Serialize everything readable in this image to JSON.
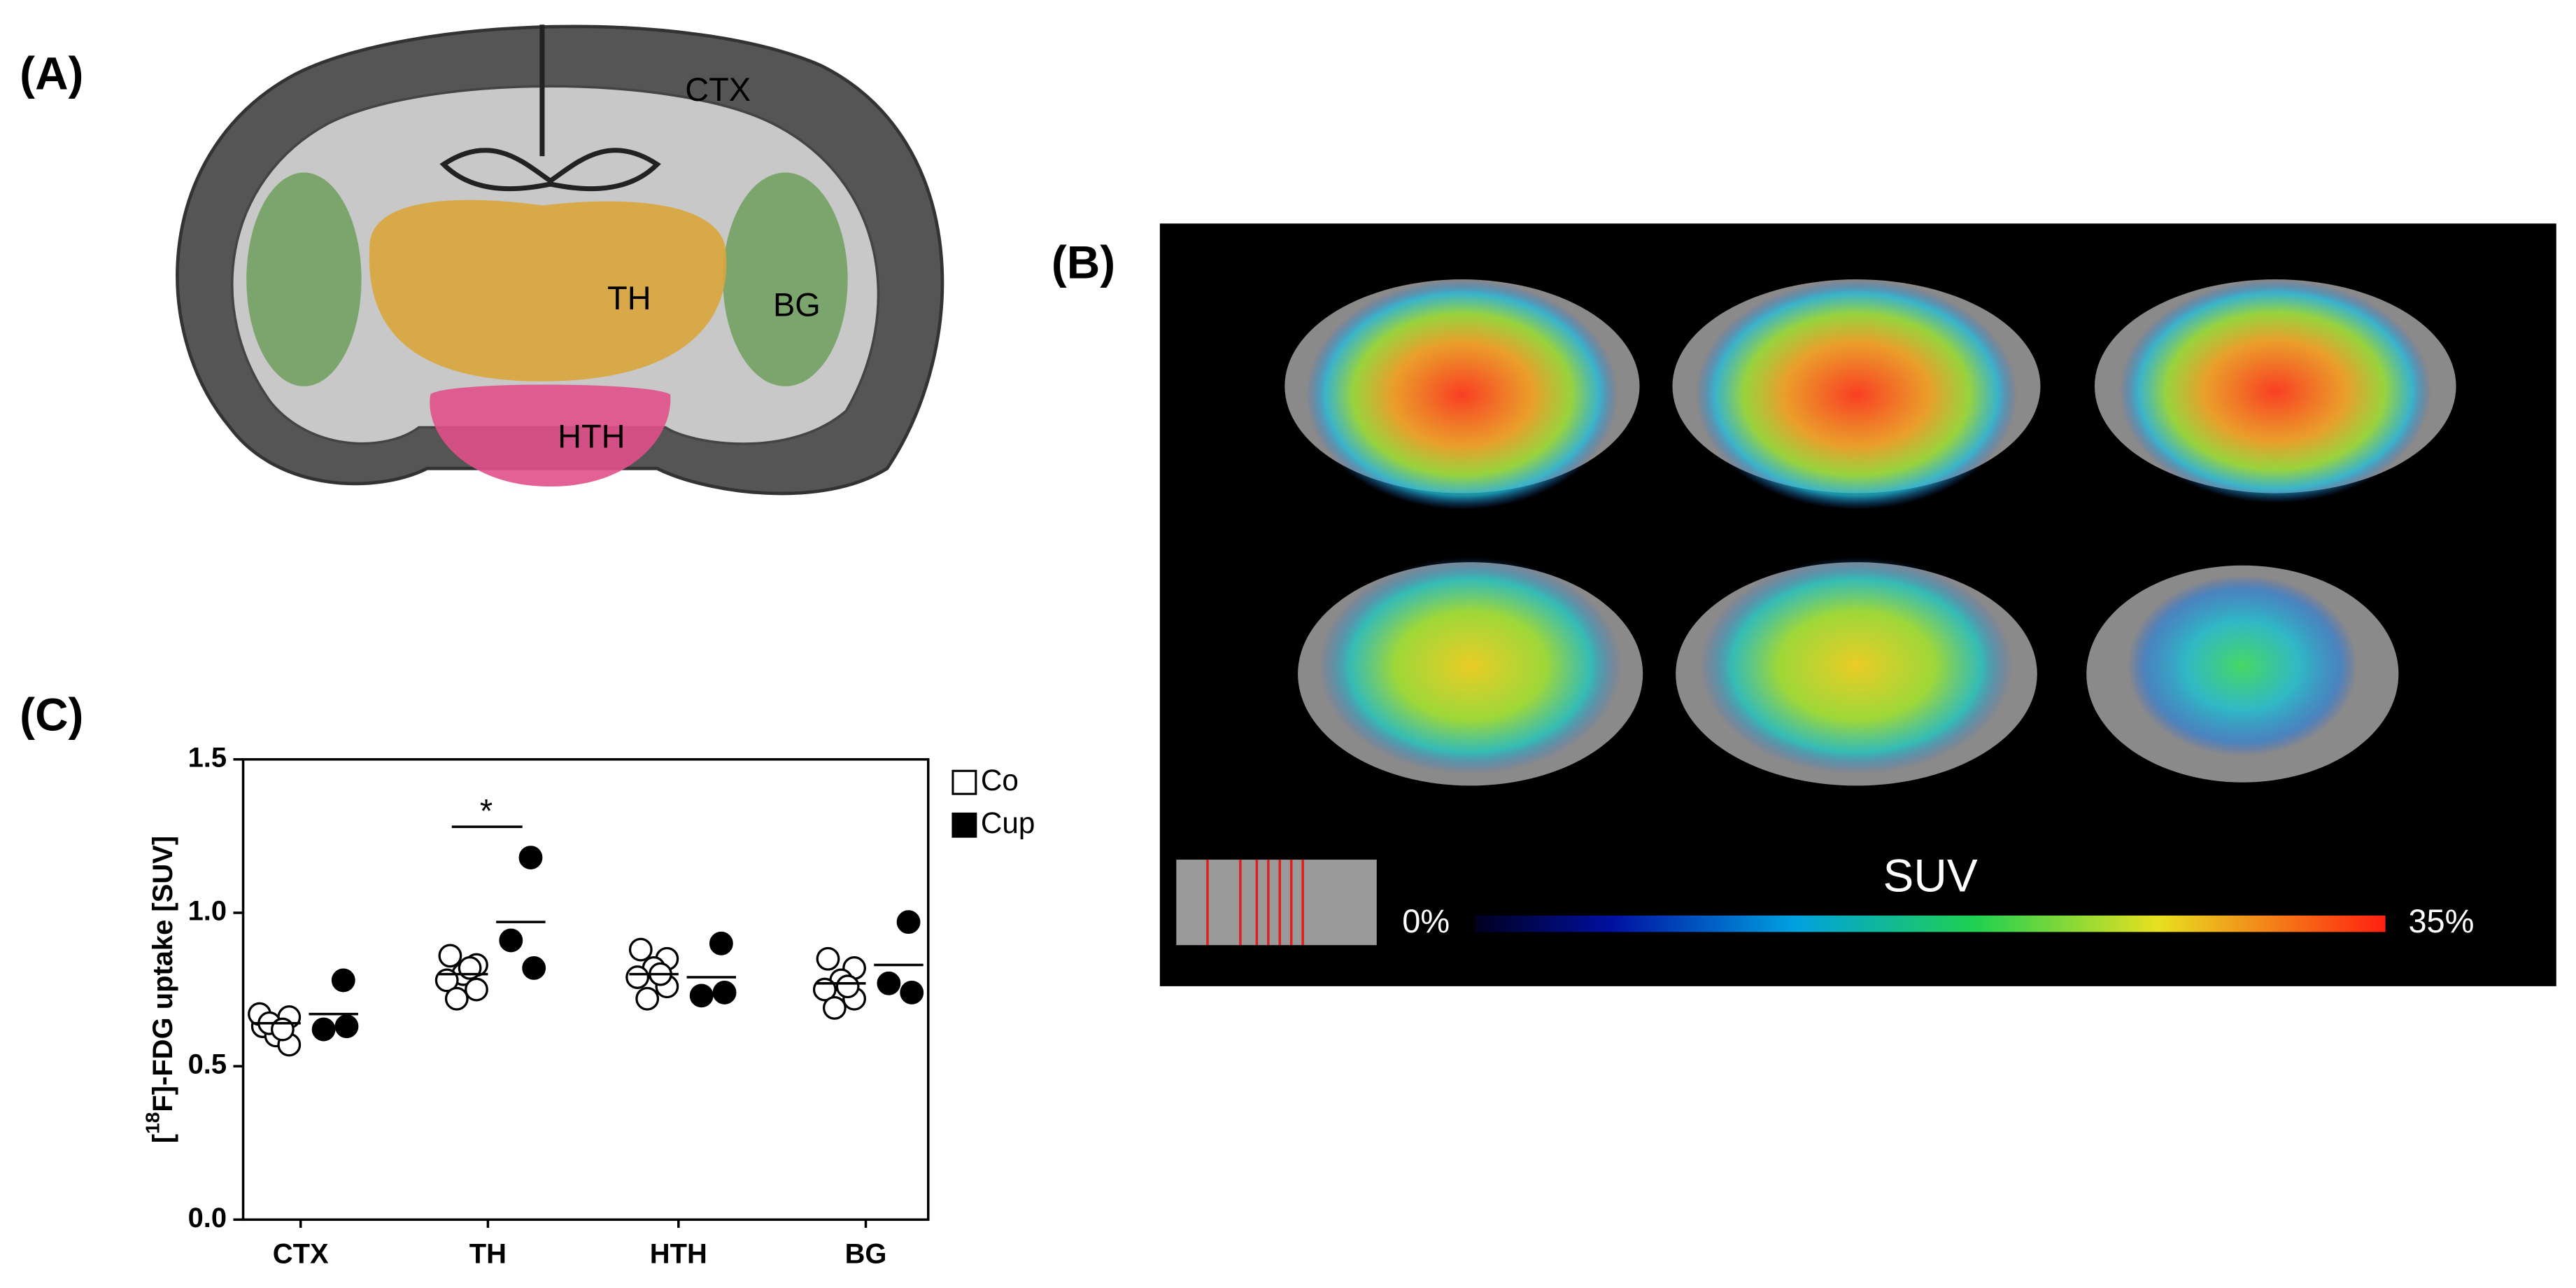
{
  "panels": {
    "A": {
      "label": "(A)",
      "regions": [
        "CTX",
        "TH",
        "BG",
        "HTH"
      ]
    },
    "B": {
      "label": "(B)",
      "colorbar": {
        "title": "SUV",
        "min_label": "0%",
        "max_label": "35%"
      }
    },
    "C": {
      "label": "(C)"
    }
  },
  "chart_data": {
    "type": "scatter",
    "y_label": {
      "prefix": "[",
      "sup": "18",
      "suffix": "F]-FDG uptake [SUV]"
    },
    "categories": [
      "CTX",
      "TH",
      "HTH",
      "BG"
    ],
    "series": [
      {
        "name": "Co",
        "color": "#000000",
        "filled": false,
        "values": [
          [
            0.63,
            0.66,
            0.6,
            0.67,
            0.57,
            0.64,
            0.62
          ],
          [
            0.86,
            0.83,
            0.8,
            0.78,
            0.75,
            0.72,
            0.82
          ],
          [
            0.88,
            0.85,
            0.82,
            0.79,
            0.76,
            0.72,
            0.8
          ],
          [
            0.85,
            0.82,
            0.78,
            0.75,
            0.72,
            0.69,
            0.76
          ]
        ],
        "mean": [
          0.64,
          0.8,
          0.8,
          0.77
        ]
      },
      {
        "name": "Cup",
        "color": "#000000",
        "filled": true,
        "values": [
          [
            0.78,
            0.62,
            0.63
          ],
          [
            1.18,
            0.91,
            0.82
          ],
          [
            0.9,
            0.73,
            0.74
          ],
          [
            0.97,
            0.77,
            0.74
          ]
        ],
        "mean": [
          0.67,
          0.97,
          0.79,
          0.83
        ]
      }
    ],
    "ylim": [
      0,
      1.5
    ],
    "yticks": [
      {
        "value": 0,
        "label": "0.0"
      },
      0.5,
      {
        "value": 1,
        "label": "1.0"
      },
      1.5
    ],
    "significance": {
      "text": "*"
    },
    "legend": "outside-right"
  }
}
